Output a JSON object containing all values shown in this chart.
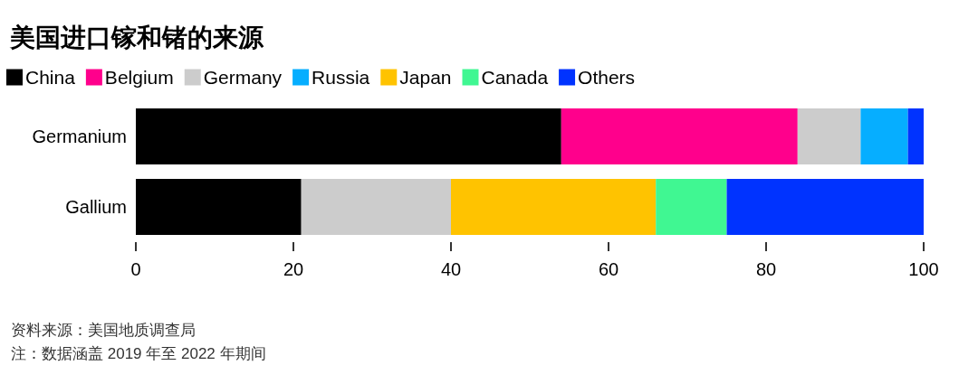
{
  "chart_data": {
    "type": "bar",
    "title": "美国进口镓和锗的来源",
    "orientation": "horizontal",
    "stacked": true,
    "legend": "top left",
    "grid": false,
    "categories": [
      "Germanium",
      "Gallium"
    ],
    "series": [
      {
        "name": "China",
        "color": "#000000",
        "values": [
          54,
          21
        ]
      },
      {
        "name": "Belgium",
        "color": "#ff008c",
        "values": [
          30,
          null
        ]
      },
      {
        "name": "Germany",
        "color": "#cccccc",
        "values": [
          8,
          19
        ]
      },
      {
        "name": "Russia",
        "color": "#06aeff",
        "values": [
          6,
          null
        ]
      },
      {
        "name": "Japan",
        "color": "#ffc300",
        "values": [
          null,
          26
        ]
      },
      {
        "name": "Canada",
        "color": "#40f792",
        "values": [
          null,
          9
        ]
      },
      {
        "name": "Others",
        "color": "#0033ff",
        "values": [
          2,
          25
        ]
      }
    ],
    "xlim": [
      0,
      100
    ],
    "xticks": [
      0,
      20,
      40,
      60,
      80,
      100
    ],
    "annotations": [
      "资料来源：美国地质调查局",
      "注：数据涵盖 2019 年至 2022 年期间"
    ]
  }
}
